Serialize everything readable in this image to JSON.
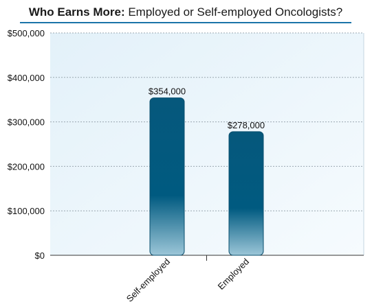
{
  "title": {
    "bold": "Who Earns More:",
    "rest": " Employed or Self-employed Oncologists?"
  },
  "colors": {
    "bar_top": "#005a80",
    "bar_bottom": "#8fbfd3",
    "plot_bg": "#eef7fc",
    "grid": "#9aa7b0",
    "title_rule": "#1a74a8"
  },
  "chart_data": {
    "type": "bar",
    "title": "Who Earns More: Employed or Self-employed Oncologists?",
    "xlabel": "",
    "ylabel": "",
    "categories": [
      "Self-employed",
      "Employed"
    ],
    "values": [
      354000,
      278000
    ],
    "data_labels": [
      "$354,000",
      "$278,000"
    ],
    "ylim": [
      0,
      500000
    ],
    "y_ticks": [
      0,
      100000,
      200000,
      300000,
      400000,
      500000
    ],
    "y_tick_labels": [
      "$0",
      "$100,000",
      "$200,000",
      "$300,000",
      "$400,000",
      "$500,000"
    ],
    "grid": true,
    "legend": "none"
  }
}
